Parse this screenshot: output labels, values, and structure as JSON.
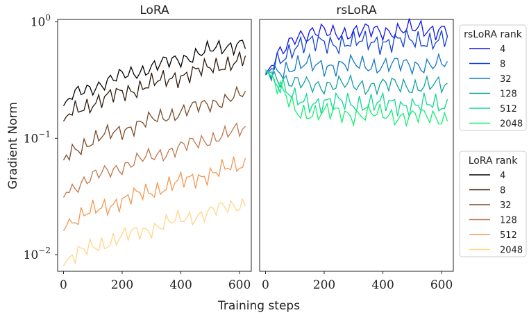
{
  "chart_data": [
    {
      "type": "line",
      "title": "LoRA",
      "xlabel": "Training steps",
      "ylabel": "Gradient Norm",
      "yscale": "log",
      "xlim": [
        -20,
        640
      ],
      "ylim": [
        0.0072,
        1.05
      ],
      "xticks": [
        "0",
        "200",
        "400",
        "600"
      ],
      "yticks": [
        {
          "base": "10",
          "exp": "0",
          "value": 1
        },
        {
          "base": "10",
          "exp": "−1",
          "value": 0.1
        },
        {
          "base": "10",
          "exp": "−2",
          "value": 0.01
        }
      ],
      "legend": {
        "title": "LoRA rank",
        "placement": "right-lower"
      },
      "series": [
        {
          "name": "4",
          "color": "#000000",
          "start": 0.19,
          "end": 0.68
        },
        {
          "name": "8",
          "color": "#2e1a0a",
          "start": 0.14,
          "end": 0.48
        },
        {
          "name": "32",
          "color": "#7a4a28",
          "start": 0.065,
          "end": 0.24
        },
        {
          "name": "128",
          "color": "#c0784a",
          "start": 0.031,
          "end": 0.12
        },
        {
          "name": "512",
          "color": "#f29850",
          "start": 0.016,
          "end": 0.06
        },
        {
          "name": "2048",
          "color": "#ffd588",
          "start": 0.008,
          "end": 0.028
        }
      ]
    },
    {
      "type": "line",
      "title": "rsLoRA",
      "xlabel": "Training steps",
      "yscale": "log",
      "xlim": [
        -20,
        640
      ],
      "ylim": [
        0.0072,
        1.05
      ],
      "xticks": [
        "0",
        "200",
        "400",
        "600"
      ],
      "legend": {
        "title": "rsLoRA rank",
        "placement": "right-upper"
      },
      "series": [
        {
          "name": "4",
          "color": "#1010f0",
          "start": 0.36,
          "end": 0.88
        },
        {
          "name": "8",
          "color": "#1040d8",
          "start": 0.35,
          "end": 0.7
        },
        {
          "name": "32",
          "color": "#1078c8",
          "start": 0.36,
          "end": 0.43
        },
        {
          "name": "128",
          "color": "#10a0a0",
          "start": 0.37,
          "end": 0.28
        },
        {
          "name": "512",
          "color": "#10d890",
          "start": 0.38,
          "end": 0.19
        },
        {
          "name": "2048",
          "color": "#10f070",
          "start": 0.39,
          "end": 0.15
        }
      ]
    }
  ]
}
